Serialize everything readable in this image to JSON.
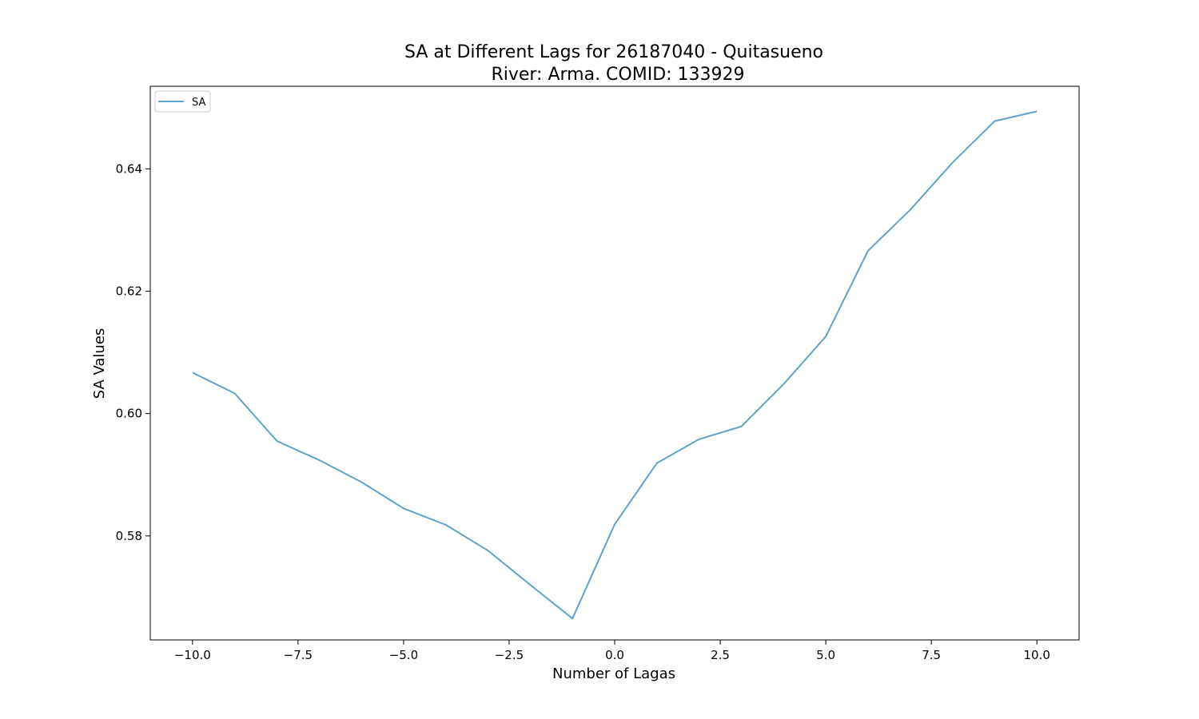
{
  "chart_data": {
    "type": "line",
    "title_line1": "SA at Different Lags for 26187040 - Quitasueno",
    "title_line2": "River: Arma. COMID: 133929",
    "xlabel": "Number of Lagas",
    "ylabel": "SA Values",
    "xlim": [
      -11,
      11
    ],
    "ylim": [
      0.563,
      0.6535
    ],
    "x_ticks": [
      -10.0,
      -7.5,
      -5.0,
      -2.5,
      0.0,
      2.5,
      5.0,
      7.5,
      10.0
    ],
    "x_tick_labels": [
      "−10.0",
      "−7.5",
      "−5.0",
      "−2.5",
      "0.0",
      "2.5",
      "5.0",
      "7.5",
      "10.0"
    ],
    "y_ticks": [
      0.58,
      0.6,
      0.62,
      0.64
    ],
    "y_tick_labels": [
      "0.58",
      "0.60",
      "0.62",
      "0.64"
    ],
    "grid": false,
    "legend_position": "top-left",
    "series": [
      {
        "name": "SA",
        "color": "#5fa2cc",
        "x": [
          -10,
          -9,
          -8,
          -7,
          -6,
          -5,
          -4,
          -3,
          -2,
          -1,
          0,
          1,
          2,
          3,
          4,
          5,
          6,
          7,
          8,
          9,
          10
        ],
        "values": [
          0.6067,
          0.6033,
          0.5955,
          0.5924,
          0.5888,
          0.5845,
          0.5818,
          0.5776,
          0.572,
          0.5665,
          0.5819,
          0.5919,
          0.5958,
          0.5979,
          0.6048,
          0.6126,
          0.6266,
          0.6333,
          0.641,
          0.6478,
          0.6494
        ]
      }
    ]
  }
}
